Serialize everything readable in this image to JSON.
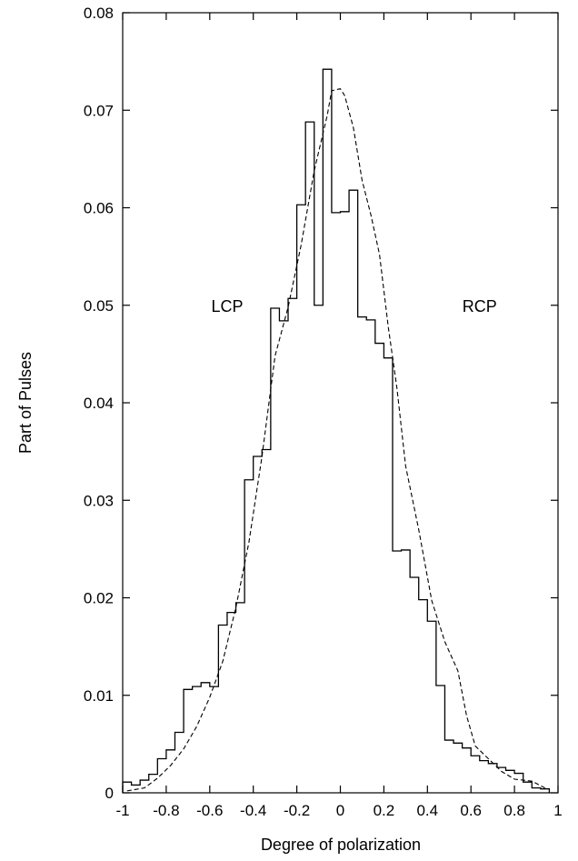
{
  "chart_data": {
    "type": "line",
    "title": "",
    "xlabel": "Degree of polarization",
    "ylabel": "Part of Pulses",
    "xlim": [
      -1,
      1
    ],
    "ylim": [
      0,
      0.08
    ],
    "x_ticks": [
      "-1",
      "-0.8",
      "-0.6",
      "-0.4",
      "-0.2",
      "0",
      "0.2",
      "0.4",
      "0.6",
      "0.8",
      "1"
    ],
    "y_ticks": [
      "0",
      "0.01",
      "0.02",
      "0.03",
      "0.04",
      "0.05",
      "0.06",
      "0.07",
      "0.08"
    ],
    "grid": false,
    "legend": "none",
    "annotations": [
      {
        "text": "LCP",
        "x": -0.52,
        "y": 0.05
      },
      {
        "text": "RCP",
        "x": 0.64,
        "y": 0.05
      }
    ],
    "series": [
      {
        "style": "histogram-step",
        "color": "#000000",
        "bin_edges": [
          -1.0,
          -0.96,
          -0.92,
          -0.88,
          -0.84,
          -0.8,
          -0.76,
          -0.72,
          -0.68,
          -0.64,
          -0.6,
          -0.56,
          -0.52,
          -0.48,
          -0.44,
          -0.4,
          -0.36,
          -0.32,
          -0.28,
          -0.24,
          -0.2,
          -0.16,
          -0.12,
          -0.08,
          -0.04,
          0.0,
          0.04,
          0.08,
          0.12,
          0.16,
          0.2,
          0.24,
          0.28,
          0.32,
          0.36,
          0.4,
          0.44,
          0.48,
          0.52,
          0.56,
          0.6,
          0.64,
          0.68,
          0.72,
          0.76,
          0.8,
          0.84,
          0.88,
          0.92,
          0.96
        ],
        "values": [
          0.0011,
          0.0008,
          0.0013,
          0.0019,
          0.0035,
          0.0044,
          0.0062,
          0.0106,
          0.0109,
          0.0113,
          0.0109,
          0.0172,
          0.0185,
          0.0195,
          0.0321,
          0.0345,
          0.0352,
          0.0497,
          0.0484,
          0.0507,
          0.0603,
          0.0688,
          0.05,
          0.0742,
          0.0595,
          0.0596,
          0.0618,
          0.0488,
          0.0485,
          0.0461,
          0.0446,
          0.0248,
          0.0249,
          0.0221,
          0.0198,
          0.0176,
          0.011,
          0.0054,
          0.0051,
          0.0046,
          0.0038,
          0.0033,
          0.003,
          0.0026,
          0.0023,
          0.002,
          0.0011,
          0.0005,
          0.0004
        ]
      },
      {
        "style": "dashed-line",
        "color": "#000000",
        "x": [
          -0.98,
          -0.9,
          -0.84,
          -0.78,
          -0.72,
          -0.66,
          -0.6,
          -0.54,
          -0.48,
          -0.42,
          -0.36,
          -0.3,
          -0.24,
          -0.18,
          -0.12,
          -0.06,
          -0.04,
          0.0,
          0.02,
          0.06,
          0.1,
          0.14,
          0.18,
          0.22,
          0.26,
          0.3,
          0.36,
          0.42,
          0.48,
          0.54,
          0.58,
          0.62,
          0.68,
          0.74,
          0.8,
          0.88,
          0.94
        ],
        "y": [
          0.0002,
          0.0005,
          0.0015,
          0.0028,
          0.0045,
          0.0068,
          0.0098,
          0.0135,
          0.019,
          0.0257,
          0.0345,
          0.0448,
          0.0498,
          0.0562,
          0.0638,
          0.0695,
          0.072,
          0.0722,
          0.0715,
          0.0682,
          0.0628,
          0.0593,
          0.0552,
          0.0478,
          0.0415,
          0.0335,
          0.027,
          0.0197,
          0.0155,
          0.0125,
          0.0079,
          0.0048,
          0.0035,
          0.0022,
          0.0014,
          0.0012,
          0.0005
        ]
      }
    ]
  }
}
